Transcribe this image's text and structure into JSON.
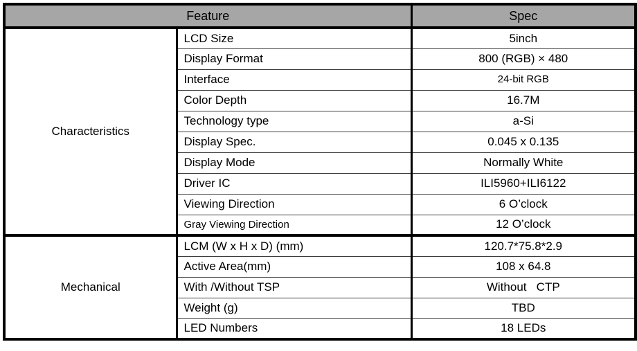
{
  "table": {
    "header": {
      "feature": "Feature",
      "spec": "Spec"
    },
    "sections": [
      {
        "category": "Characteristics",
        "rows": [
          {
            "feature": "LCD Size",
            "spec": "5inch"
          },
          {
            "feature": "Display Format",
            "spec": "800 (RGB) × 480"
          },
          {
            "feature": "Interface",
            "spec": "24-bit RGB"
          },
          {
            "feature": "Color Depth",
            "spec": "16.7M"
          },
          {
            "feature": "Technology type",
            "spec": "a-Si"
          },
          {
            "feature": "Display Spec.",
            "spec": "0.045 x 0.135"
          },
          {
            "feature": "Display Mode",
            "spec": "Normally White"
          },
          {
            "feature": "Driver IC",
            "spec": "ILI5960+ILI6122"
          },
          {
            "feature": "Viewing Direction",
            "spec": "6 O’clock"
          },
          {
            "feature": "Gray Viewing Direction",
            "spec": "12 O’clock"
          }
        ]
      },
      {
        "category": "Mechanical",
        "rows": [
          {
            "feature": "LCM (W x H x D) (mm)",
            "spec": "120.7*75.8*2.9"
          },
          {
            "feature": "Active Area(mm)",
            "spec": "108 x 64.8"
          },
          {
            "feature": "With /Without TSP",
            "spec": "Without   CTP"
          },
          {
            "feature": "Weight (g)",
            "spec": "TBD"
          },
          {
            "feature": "LED Numbers",
            "spec": "18 LEDs"
          }
        ]
      }
    ]
  },
  "colors": {
    "header_bg": "#a6a6a6",
    "border": "#000000",
    "row_line": "#3c3c3c",
    "background": "#ffffff",
    "text": "#000000"
  }
}
